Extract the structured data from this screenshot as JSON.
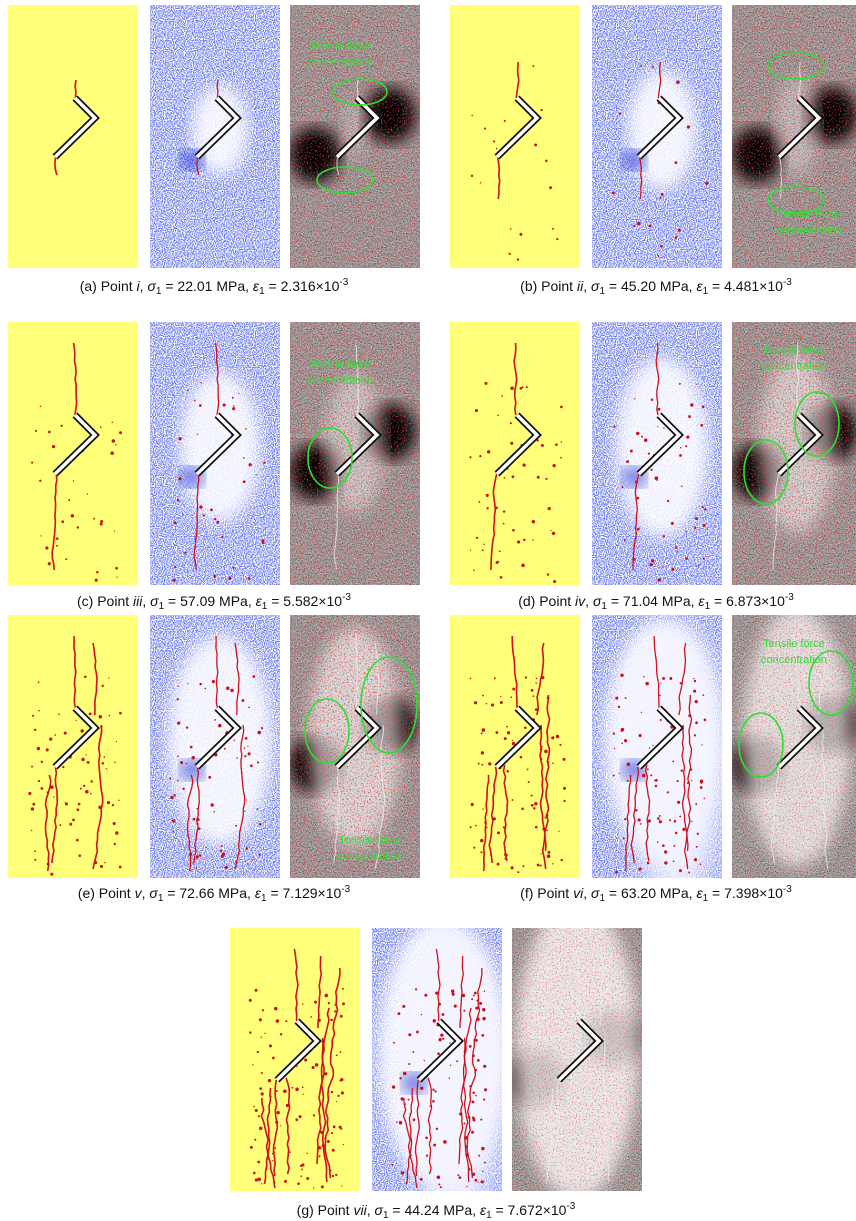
{
  "figure": {
    "panels": [
      {
        "caption": [
          {
            "text": "(a) Point "
          },
          {
            "text": "i",
            "style": "italic"
          },
          {
            "text": ", "
          },
          {
            "text": "σ",
            "style": "italic"
          },
          {
            "text": "1",
            "style": "sub"
          },
          {
            "text": " = 22.01 MPa, "
          },
          {
            "text": "ε",
            "style": "italic"
          },
          {
            "text": "1",
            "style": "sub"
          },
          {
            "text": " = 2.316×10"
          },
          {
            "text": "-3",
            "style": "sup"
          }
        ],
        "annotations": [
          [
            "Tensile force",
            "concentration"
          ]
        ]
      },
      {
        "caption": [
          {
            "text": "(b) Point "
          },
          {
            "text": "ii",
            "style": "italic"
          },
          {
            "text": ", "
          },
          {
            "text": "σ",
            "style": "italic"
          },
          {
            "text": "1",
            "style": "sub"
          },
          {
            "text": " = 45.20 MPa, "
          },
          {
            "text": "ε",
            "style": "italic"
          },
          {
            "text": "1",
            "style": "sub"
          },
          {
            "text": " = 4.481×10"
          },
          {
            "text": "-3",
            "style": "sup"
          }
        ],
        "annotations": [
          [
            "Tensile force",
            "concentration"
          ]
        ]
      },
      {
        "caption": [
          {
            "text": "(c) Point "
          },
          {
            "text": "iii",
            "style": "italic"
          },
          {
            "text": ", "
          },
          {
            "text": "σ",
            "style": "italic"
          },
          {
            "text": "1",
            "style": "sub"
          },
          {
            "text": " = 57.09 MPa, "
          },
          {
            "text": "ε",
            "style": "italic"
          },
          {
            "text": "1",
            "style": "sub"
          },
          {
            "text": " = 5.582×10"
          },
          {
            "text": "-3",
            "style": "sup"
          }
        ],
        "annotations": [
          [
            "Tensile force",
            "concentration"
          ]
        ]
      },
      {
        "caption": [
          {
            "text": "(d) Point "
          },
          {
            "text": "iv",
            "style": "italic"
          },
          {
            "text": ", "
          },
          {
            "text": "σ",
            "style": "italic"
          },
          {
            "text": "1",
            "style": "sub"
          },
          {
            "text": " = 71.04 MPa, "
          },
          {
            "text": "ε",
            "style": "italic"
          },
          {
            "text": "1",
            "style": "sub"
          },
          {
            "text": " = 6.873×10"
          },
          {
            "text": "-3",
            "style": "sup"
          }
        ],
        "annotations": [
          [
            "Tensile force",
            "concentration"
          ]
        ]
      },
      {
        "caption": [
          {
            "text": "(e) Point "
          },
          {
            "text": "v",
            "style": "italic"
          },
          {
            "text": ", "
          },
          {
            "text": "σ",
            "style": "italic"
          },
          {
            "text": "1",
            "style": "sub"
          },
          {
            "text": " = 72.66 MPa, "
          },
          {
            "text": "ε",
            "style": "italic"
          },
          {
            "text": "1",
            "style": "sub"
          },
          {
            "text": " = 7.129×10"
          },
          {
            "text": "-3",
            "style": "sup"
          }
        ],
        "annotations": [
          [
            "Tensile force",
            "concentration"
          ]
        ]
      },
      {
        "caption": [
          {
            "text": "(f) Point "
          },
          {
            "text": "vi",
            "style": "italic"
          },
          {
            "text": ", "
          },
          {
            "text": "σ",
            "style": "italic"
          },
          {
            "text": "1",
            "style": "sub"
          },
          {
            "text": " = 63.20 MPa, "
          },
          {
            "text": "ε",
            "style": "italic"
          },
          {
            "text": "1",
            "style": "sub"
          },
          {
            "text": " = 7.398×10"
          },
          {
            "text": "-3",
            "style": "sup"
          }
        ],
        "annotations": [
          [
            "Tensile force",
            "concentration"
          ]
        ]
      },
      {
        "caption": [
          {
            "text": "(g) Point "
          },
          {
            "text": "vii",
            "style": "italic"
          },
          {
            "text": ", "
          },
          {
            "text": "σ",
            "style": "italic"
          },
          {
            "text": "1",
            "style": "sub"
          },
          {
            "text": " = 44.24 MPa, "
          },
          {
            "text": "ε",
            "style": "italic"
          },
          {
            "text": "1",
            "style": "sub"
          },
          {
            "text": " = 7.672×10"
          },
          {
            "text": "-3",
            "style": "sup"
          }
        ],
        "annotations": []
      }
    ]
  }
}
